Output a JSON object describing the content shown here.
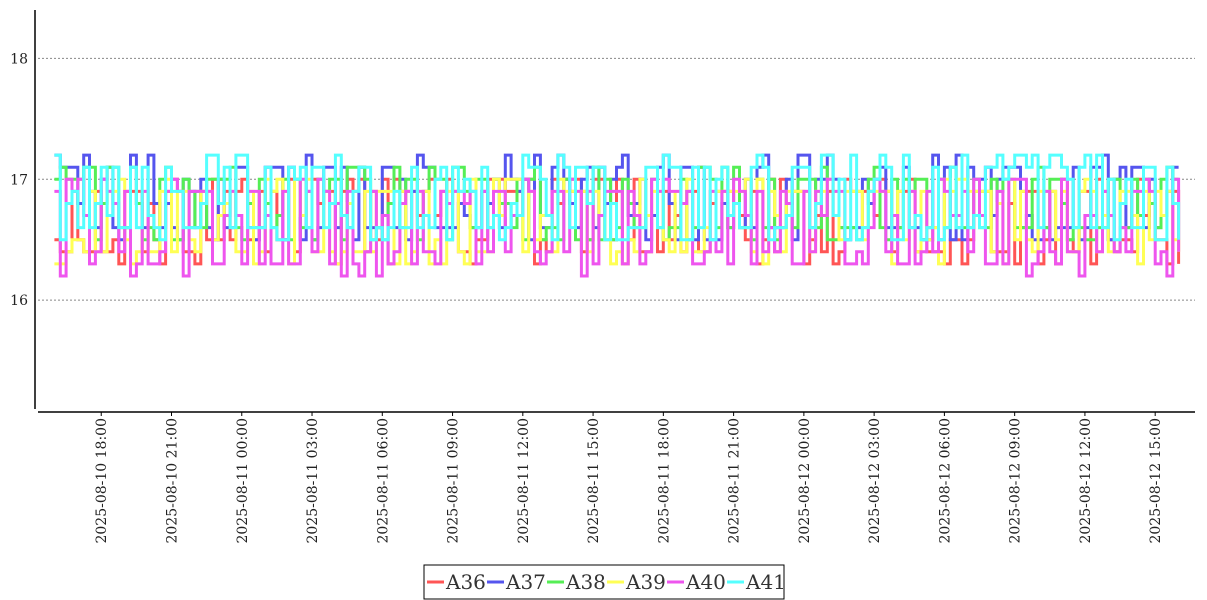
{
  "chart_data": {
    "type": "line",
    "title": "",
    "xlabel": "",
    "ylabel": "",
    "ylim": [
      15.1,
      18.4
    ],
    "yticks": [
      16,
      17,
      18
    ],
    "xlim": [
      "2025-08-10 15:18",
      "2025-08-12 16:42"
    ],
    "xticks": [
      "2025-08-10 18:00",
      "2025-08-10 21:00",
      "2025-08-11 00:00",
      "2025-08-11 03:00",
      "2025-08-11 06:00",
      "2025-08-11 09:00",
      "2025-08-11 12:00",
      "2025-08-11 15:00",
      "2025-08-11 18:00",
      "2025-08-11 21:00",
      "2025-08-12 00:00",
      "2025-08-12 03:00",
      "2025-08-12 06:00",
      "2025-08-12 09:00",
      "2025-08-12 12:00",
      "2025-08-12 15:00"
    ],
    "grid": "horizontal dotted",
    "legend_position": "bottom-center",
    "x_start": "2025-08-10 16:00",
    "x_end": "2025-08-12 16:00",
    "interval_minutes": 15,
    "series": [
      {
        "name": "A36",
        "color": "#ff5555",
        "approx_range": [
          16.3,
          17.0
        ],
        "mean": 16.75
      },
      {
        "name": "A37",
        "color": "#5555ee",
        "approx_range": [
          16.5,
          17.2
        ],
        "mean": 16.8
      },
      {
        "name": "A38",
        "color": "#55ee55",
        "approx_range": [
          16.5,
          17.1
        ],
        "mean": 16.8
      },
      {
        "name": "A39",
        "color": "#ffff55",
        "approx_range": [
          16.3,
          17.0
        ],
        "mean": 16.7
      },
      {
        "name": "A40",
        "color": "#ee55ee",
        "approx_range": [
          16.2,
          17.0
        ],
        "mean": 16.7
      },
      {
        "name": "A41",
        "color": "#55ffff",
        "approx_range": [
          16.5,
          17.2
        ],
        "mean": 16.85
      }
    ]
  }
}
